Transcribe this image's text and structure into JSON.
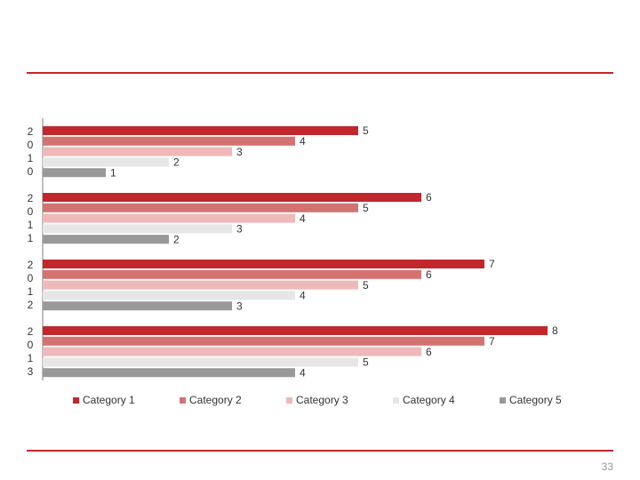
{
  "chart_data": {
    "type": "bar",
    "orientation": "horizontal",
    "categories": [
      "2010",
      "2011",
      "2012",
      "2013"
    ],
    "series": [
      {
        "name": "Category 1",
        "color": "#c0282d",
        "values": [
          5,
          6,
          7,
          8
        ]
      },
      {
        "name": "Category 2",
        "color": "#d47272",
        "values": [
          4,
          5,
          6,
          7
        ]
      },
      {
        "name": "Category 3",
        "color": "#f0b9b9",
        "values": [
          3,
          4,
          5,
          6
        ]
      },
      {
        "name": "Category 4",
        "color": "#e6e6e6",
        "values": [
          2,
          3,
          4,
          5
        ]
      },
      {
        "name": "Category 5",
        "color": "#999999",
        "values": [
          1,
          2,
          3,
          4
        ]
      }
    ],
    "legend": "bottom"
  },
  "page_number": "33"
}
